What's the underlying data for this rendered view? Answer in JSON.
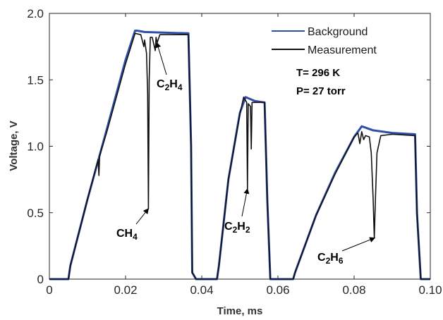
{
  "chart_data": {
    "type": "line",
    "xlabel": "Time, ms",
    "ylabel": "Voltage, V",
    "xlim": [
      0,
      0.1
    ],
    "ylim": [
      0,
      2.0
    ],
    "x_ticks": [
      "0",
      "0.02",
      "0.04",
      "0.06",
      "0.08",
      "0.10"
    ],
    "y_ticks": [
      "0",
      "0.5",
      "1.0",
      "1.5",
      "2.0"
    ],
    "grid": false,
    "legend_position": "top-right",
    "series": [
      {
        "name": "Background",
        "color": "#2f4fa8",
        "x": [
          0,
          0.005,
          0.0055,
          0.01,
          0.015,
          0.02,
          0.0225,
          0.023,
          0.025,
          0.03,
          0.0365,
          0.0372,
          0.0375,
          0.0385,
          0.044,
          0.0445,
          0.047,
          0.05,
          0.0515,
          0.054,
          0.0565,
          0.0572,
          0.058,
          0.064,
          0.0645,
          0.07,
          0.075,
          0.08,
          0.082,
          0.085,
          0.09,
          0.096,
          0.0965,
          0.0975,
          0.1
        ],
        "y": [
          0,
          0,
          0.1,
          0.6,
          1.12,
          1.65,
          1.87,
          1.87,
          1.86,
          1.855,
          1.85,
          1.0,
          0.05,
          0,
          0,
          0.1,
          0.75,
          1.25,
          1.37,
          1.34,
          1.33,
          0.6,
          0,
          0,
          0.05,
          0.48,
          0.8,
          1.07,
          1.15,
          1.12,
          1.1,
          1.09,
          0.5,
          0,
          0
        ]
      },
      {
        "name": "Measurement",
        "color": "#111111",
        "x": [
          0,
          0.005,
          0.0055,
          0.01,
          0.0128,
          0.013,
          0.0132,
          0.015,
          0.02,
          0.0225,
          0.024,
          0.0248,
          0.025,
          0.0255,
          0.0258,
          0.026,
          0.0262,
          0.0265,
          0.027,
          0.0278,
          0.028,
          0.0283,
          0.029,
          0.03,
          0.0365,
          0.0372,
          0.0375,
          0.0385,
          0.044,
          0.0445,
          0.047,
          0.05,
          0.051,
          0.0518,
          0.052,
          0.0522,
          0.0528,
          0.053,
          0.0532,
          0.054,
          0.0565,
          0.0572,
          0.058,
          0.064,
          0.0645,
          0.07,
          0.075,
          0.08,
          0.081,
          0.0815,
          0.082,
          0.0825,
          0.083,
          0.084,
          0.0845,
          0.085,
          0.0853,
          0.0856,
          0.086,
          0.087,
          0.09,
          0.096,
          0.0965,
          0.0975,
          0.1
        ],
        "y": [
          0,
          0,
          0.1,
          0.6,
          0.9,
          0.78,
          0.93,
          1.1,
          1.62,
          1.85,
          1.84,
          1.75,
          1.8,
          1.7,
          1.4,
          0.53,
          1.5,
          1.82,
          1.82,
          1.72,
          1.82,
          1.78,
          1.84,
          1.84,
          1.84,
          1.0,
          0.05,
          0,
          0,
          0.1,
          0.75,
          1.24,
          1.37,
          1.33,
          0.68,
          1.32,
          1.3,
          0.98,
          1.33,
          1.33,
          1.33,
          0.6,
          0,
          0,
          0.05,
          0.48,
          0.79,
          1.07,
          1.1,
          1.02,
          1.11,
          1.05,
          1.08,
          1.07,
          0.95,
          0.6,
          0.31,
          0.6,
          0.95,
          1.08,
          1.09,
          1.08,
          0.5,
          0,
          0
        ]
      }
    ],
    "conditions": [
      "T= 296 K",
      "P= 27 torr"
    ],
    "annotations": [
      {
        "base": "CH",
        "sub": "4",
        "arrow_to": [
          0.026,
          0.53
        ]
      },
      {
        "base": "C",
        "sub1": "2",
        "mid": "H",
        "sub2": "4",
        "arrow_to": [
          0.0282,
          1.78
        ]
      },
      {
        "base": "C",
        "sub1": "2",
        "mid": "H",
        "sub2": "2",
        "arrow_to": [
          0.052,
          0.68
        ]
      },
      {
        "base": "C",
        "sub1": "2",
        "mid": "H",
        "sub2": "6",
        "arrow_to": [
          0.0854,
          0.31
        ]
      }
    ]
  }
}
